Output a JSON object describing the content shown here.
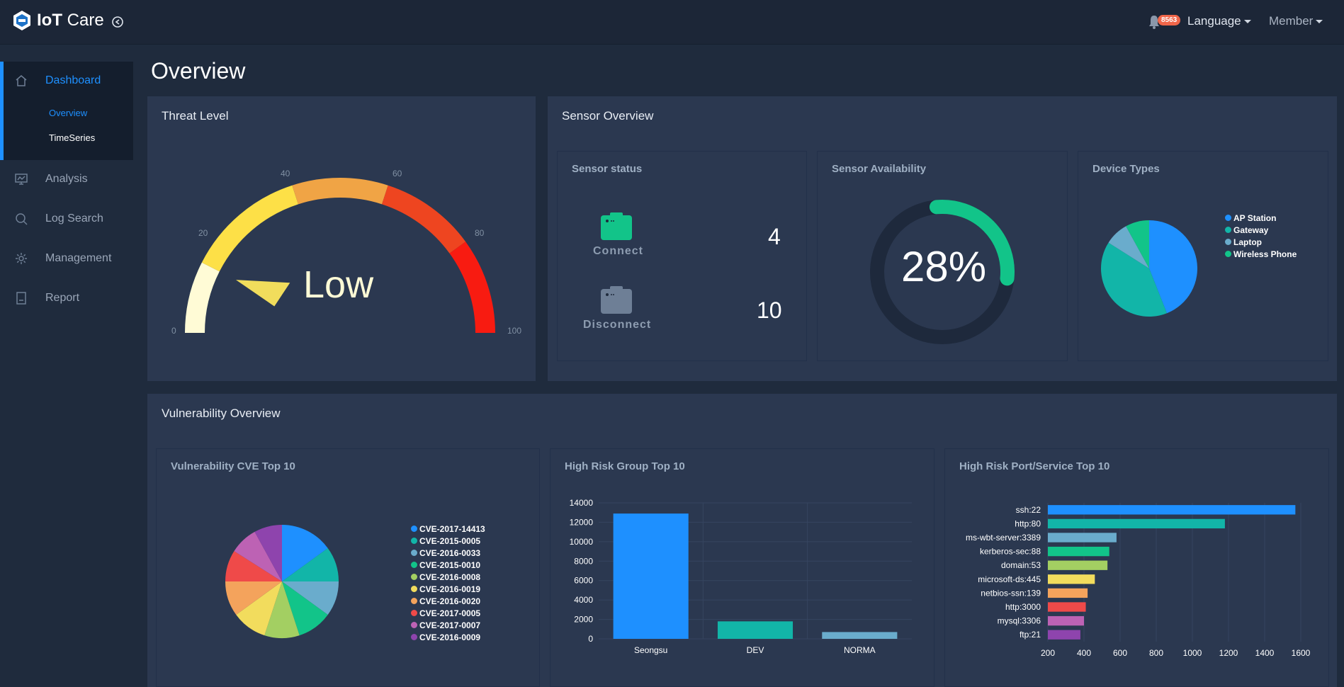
{
  "app": {
    "name_bold": "IoT",
    "name_rest": " Care"
  },
  "header": {
    "notification_count": "8563",
    "language_label": "Language",
    "member_label": "Member"
  },
  "sidebar": {
    "dashboard": "Dashboard",
    "sub_items": [
      "Overview",
      "TimeSeries"
    ],
    "analysis": "Analysis",
    "log_search": "Log Search",
    "management": "Management",
    "report": "Report"
  },
  "page": {
    "title": "Overview"
  },
  "threat": {
    "title": "Threat Level",
    "level_text": "Low",
    "value": 15,
    "ticks": [
      "0",
      "20",
      "40",
      "60",
      "80",
      "100"
    ]
  },
  "sensor": {
    "title": "Sensor Overview",
    "status_title": "Sensor status",
    "connect_label": "Connect",
    "connect_count": "4",
    "disconnect_label": "Disconnect",
    "disconnect_count": "10",
    "availability_title": "Sensor Availability",
    "availability_text": "28%",
    "availability_value": 28,
    "device_title": "Device Types"
  },
  "device_types": {
    "labels": [
      "AP Station",
      "Gateway",
      "Laptop",
      "Wireless Phone"
    ],
    "values": [
      44,
      40,
      8,
      8
    ],
    "colors": [
      "#1e90ff",
      "#12b5a8",
      "#6aaccc",
      "#12c489"
    ]
  },
  "vuln": {
    "title": "Vulnerability Overview",
    "cve_title": "Vulnerability CVE Top 10",
    "group_title": "High Risk Group Top 10",
    "port_title": "High Risk Port/Service Top 10"
  },
  "chart_data": [
    {
      "type": "pie",
      "labels": [
        "CVE-2017-14413",
        "CVE-2015-0005",
        "CVE-2016-0033",
        "CVE-2015-0010",
        "CVE-2016-0008",
        "CVE-2016-0019",
        "CVE-2016-0020",
        "CVE-2017-0005",
        "CVE-2017-0007",
        "CVE-2016-0009"
      ],
      "values": [
        15,
        10,
        10,
        10,
        10,
        10,
        10,
        9,
        8,
        8
      ],
      "colors": [
        "#1e90ff",
        "#12b5a8",
        "#6aaccc",
        "#12c489",
        "#a3cf62",
        "#f2dc5d",
        "#f4a35c",
        "#ef4a49",
        "#bd62b4",
        "#8e44ad"
      ],
      "legend": "right"
    },
    {
      "type": "bar",
      "categories": [
        "Seongsu",
        "DEV",
        "NORMA"
      ],
      "values": [
        12900,
        1800,
        700
      ],
      "colors": [
        "#1e90ff",
        "#12b5a8",
        "#6aaccc"
      ],
      "ylim": [
        0,
        14000
      ],
      "yticks": [
        "0",
        "2000",
        "4000",
        "6000",
        "8000",
        "10000",
        "12000",
        "14000"
      ],
      "grid": true
    },
    {
      "type": "bar",
      "orientation": "horizontal",
      "categories": [
        "ssh:22",
        "http:80",
        "ms-wbt-server:3389",
        "kerberos-sec:88",
        "domain:53",
        "microsoft-ds:445",
        "netbios-ssn:139",
        "http:3000",
        "mysql:3306",
        "ftp:21"
      ],
      "values": [
        1570,
        1180,
        580,
        540,
        530,
        460,
        420,
        410,
        400,
        380
      ],
      "colors": [
        "#1e90ff",
        "#12b5a8",
        "#6aaccc",
        "#12c489",
        "#a3cf62",
        "#f2dc5d",
        "#f4a35c",
        "#ef4a49",
        "#bd62b4",
        "#8e44ad"
      ],
      "xlim": [
        200,
        1600
      ],
      "xticks": [
        "200",
        "400",
        "600",
        "800",
        "1000",
        "1200",
        "1400",
        "1600"
      ],
      "grid": true
    }
  ]
}
